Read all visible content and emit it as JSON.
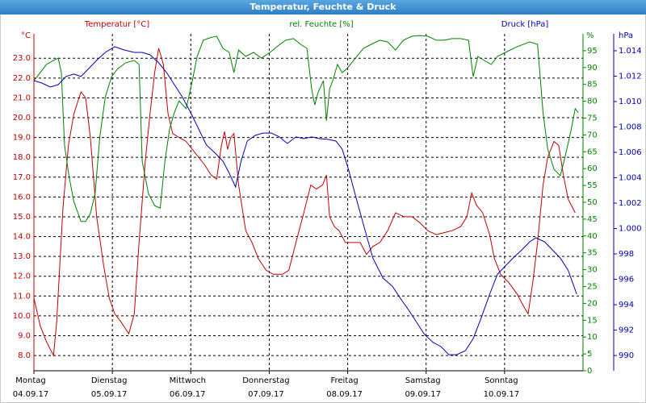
{
  "chart_data": {
    "type": "line",
    "title": "Temperatur, Feuchte & Druck",
    "xlim": [
      0,
      7
    ],
    "xticks": [
      {
        "value": 0,
        "label": "Montag",
        "date": "04.09.17"
      },
      {
        "value": 1,
        "label": "Dienstag",
        "date": "05.09.17"
      },
      {
        "value": 2,
        "label": "Mittwoch",
        "date": "06.09.17"
      },
      {
        "value": 3,
        "label": "Donnerstag",
        "date": "07.09.17"
      },
      {
        "value": 4,
        "label": "Freitag",
        "date": "08.09.17"
      },
      {
        "value": 5,
        "label": "Samstag",
        "date": "09.09.17"
      },
      {
        "value": 6,
        "label": "Sonntag",
        "date": "10.09.17"
      }
    ],
    "y_unit": "°C",
    "ylim": [
      7.23,
      24.23
    ],
    "yticks": [
      {
        "value": 8,
        "label": "8.0"
      },
      {
        "value": 9,
        "label": "9.0"
      },
      {
        "value": 10,
        "label": "10.0"
      },
      {
        "value": 11,
        "label": "11.0"
      },
      {
        "value": 12,
        "label": "12.0"
      },
      {
        "value": 13,
        "label": "13.0"
      },
      {
        "value": 14,
        "label": "14.0"
      },
      {
        "value": 15,
        "label": "15.0"
      },
      {
        "value": 16,
        "label": "16.0"
      },
      {
        "value": 17,
        "label": "17.0"
      },
      {
        "value": 18,
        "label": "18.0"
      },
      {
        "value": 19,
        "label": "19.0"
      },
      {
        "value": 20,
        "label": "20.0"
      },
      {
        "value": 21,
        "label": "21.0"
      },
      {
        "value": 22,
        "label": "22.0"
      },
      {
        "value": 23,
        "label": "23.0"
      }
    ],
    "y2_unit": "%",
    "y2lim": [
      0,
      100
    ],
    "y2ticks": [
      0,
      5,
      10,
      15,
      20,
      25,
      30,
      35,
      40,
      45,
      50,
      55,
      60,
      65,
      70,
      75,
      80,
      85,
      90,
      95
    ],
    "y3_unit": "hPa",
    "y3lim": [
      988.8,
      1015.33
    ],
    "y3ticks": [
      990,
      992,
      994,
      996,
      998,
      {
        "value": 1000,
        "label": "1.000"
      },
      {
        "value": 1002,
        "label": "1.002"
      },
      {
        "value": 1004,
        "label": "1.004"
      },
      {
        "value": 1006,
        "label": "1.006"
      },
      {
        "value": 1008,
        "label": "1.008"
      },
      {
        "value": 1010,
        "label": "1.010"
      },
      {
        "value": 1012,
        "label": "1.012"
      },
      {
        "value": 1014,
        "label": "1.014"
      }
    ],
    "grid": true,
    "series": [
      {
        "name": "Temperatur [°C]",
        "color": "#c00000",
        "axis": "y",
        "x": [
          0,
          0.08,
          0.16,
          0.25,
          0.29,
          0.37,
          0.44,
          0.51,
          0.6,
          0.66,
          0.72,
          0.8,
          0.89,
          0.96,
          1.03,
          1.11,
          1.21,
          1.28,
          1.34,
          1.42,
          1.48,
          1.54,
          1.59,
          1.65,
          1.71,
          1.77,
          1.85,
          1.94,
          2.02,
          2.1,
          2.18,
          2.26,
          2.33,
          2.39,
          2.43,
          2.47,
          2.51,
          2.55,
          2.61,
          2.7,
          2.78,
          2.86,
          2.96,
          3.05,
          3.17,
          3.25,
          3.34,
          3.44,
          3.53,
          3.6,
          3.68,
          3.73,
          3.77,
          3.83,
          3.89,
          3.97,
          4.06,
          4.16,
          4.24,
          4.32,
          4.41,
          4.51,
          4.61,
          4.72,
          4.82,
          4.92,
          5.02,
          5.13,
          5.23,
          5.33,
          5.44,
          5.52,
          5.58,
          5.64,
          5.72,
          5.81,
          5.87,
          5.95,
          6.05,
          6.16,
          6.24,
          6.3,
          6.36,
          6.42,
          6.49,
          6.55,
          6.63,
          6.69,
          6.75,
          6.81,
          6.9
        ],
        "values": [
          10.9,
          9.5,
          8.7,
          8.0,
          9.7,
          15.4,
          18.6,
          20.2,
          21.3,
          21.0,
          19.0,
          15.0,
          12.5,
          10.9,
          10.1,
          9.7,
          9.1,
          10.1,
          13.7,
          17.8,
          20.2,
          22.3,
          23.5,
          22.7,
          20.2,
          19.2,
          19.0,
          18.8,
          18.4,
          18.0,
          17.6,
          17.1,
          16.9,
          18.6,
          19.3,
          18.4,
          19.0,
          19.2,
          16.6,
          14.3,
          13.7,
          12.9,
          12.3,
          12.1,
          12.1,
          12.3,
          13.7,
          15.2,
          16.6,
          16.4,
          16.6,
          17.1,
          15.0,
          14.5,
          14.3,
          13.7,
          13.7,
          13.7,
          13.1,
          13.5,
          13.7,
          14.3,
          15.2,
          15.0,
          15.0,
          14.7,
          14.3,
          14.1,
          14.2,
          14.3,
          14.5,
          15.0,
          16.2,
          15.6,
          15.2,
          14.1,
          12.9,
          12.1,
          11.7,
          11.1,
          10.5,
          10.1,
          11.7,
          13.7,
          16.6,
          18.0,
          18.8,
          18.6,
          17.1,
          15.9,
          15.2
        ]
      },
      {
        "name": "rel. Feuchte [%]",
        "color": "#008000",
        "axis": "y2",
        "x": [
          0,
          0.08,
          0.16,
          0.25,
          0.31,
          0.35,
          0.39,
          0.45,
          0.51,
          0.6,
          0.66,
          0.72,
          0.78,
          0.84,
          0.91,
          0.99,
          1.07,
          1.17,
          1.28,
          1.34,
          1.38,
          1.46,
          1.54,
          1.61,
          1.67,
          1.73,
          1.79,
          1.85,
          1.94,
          2.02,
          2.08,
          2.16,
          2.24,
          2.33,
          2.41,
          2.49,
          2.55,
          2.61,
          2.7,
          2.8,
          2.9,
          3.01,
          3.11,
          3.21,
          3.31,
          3.4,
          3.48,
          3.54,
          3.58,
          3.62,
          3.69,
          3.73,
          3.77,
          3.81,
          3.87,
          3.93,
          3.99,
          4.1,
          4.2,
          4.3,
          4.41,
          4.51,
          4.61,
          4.71,
          4.82,
          4.92,
          5.02,
          5.13,
          5.23,
          5.33,
          5.44,
          5.54,
          5.6,
          5.66,
          5.74,
          5.83,
          5.91,
          6.01,
          6.16,
          6.32,
          6.42,
          6.49,
          6.55,
          6.63,
          6.71,
          6.77,
          6.84,
          6.9,
          6.94
        ],
        "values": [
          86.1,
          88.5,
          90.9,
          92.1,
          92.8,
          88.5,
          67.0,
          57.4,
          50.2,
          44.3,
          44.3,
          46.7,
          52.6,
          69.4,
          81.3,
          87.3,
          89.7,
          91.4,
          92.1,
          90.9,
          62.2,
          52.6,
          49.0,
          48.3,
          62.2,
          71.8,
          76.6,
          80.1,
          77.8,
          86.1,
          93.3,
          98.1,
          98.8,
          99.3,
          95.7,
          94.5,
          88.5,
          95.2,
          93.3,
          94.5,
          92.8,
          94.5,
          96.4,
          98.1,
          98.6,
          96.9,
          95.7,
          83.7,
          78.9,
          82.5,
          86.1,
          74.2,
          83.7,
          86.1,
          90.9,
          88.5,
          89.7,
          92.8,
          95.7,
          96.9,
          98.1,
          97.6,
          95.2,
          98.1,
          99.3,
          99.5,
          99.3,
          98.1,
          98.1,
          98.6,
          98.6,
          98.1,
          87.3,
          93.3,
          92.1,
          90.9,
          93.3,
          94.5,
          96.2,
          97.6,
          96.9,
          76.6,
          65.8,
          59.8,
          57.9,
          63.4,
          70.6,
          77.8,
          76.6
        ]
      },
      {
        "name": "Druck [hPa]",
        "color": "#0000b0",
        "axis": "y3",
        "x": [
          0,
          0.1,
          0.21,
          0.31,
          0.41,
          0.51,
          0.6,
          0.7,
          0.8,
          0.91,
          1.03,
          1.15,
          1.28,
          1.38,
          1.48,
          1.59,
          1.69,
          1.79,
          1.89,
          2.0,
          2.1,
          2.2,
          2.31,
          2.41,
          2.49,
          2.57,
          2.64,
          2.72,
          2.82,
          2.92,
          3.03,
          3.13,
          3.23,
          3.34,
          3.44,
          3.54,
          3.64,
          3.75,
          3.85,
          3.93,
          4.01,
          4.12,
          4.22,
          4.32,
          4.45,
          4.57,
          4.67,
          4.78,
          4.88,
          4.98,
          5.09,
          5.19,
          5.29,
          5.39,
          5.5,
          5.6,
          5.7,
          5.81,
          5.91,
          6.01,
          6.11,
          6.22,
          6.32,
          6.4,
          6.51,
          6.61,
          6.71,
          6.81,
          6.92
        ],
        "values": [
          1011.65,
          1011.46,
          1011.14,
          1011.33,
          1011.97,
          1012.16,
          1011.97,
          1012.6,
          1013.24,
          1013.87,
          1014.32,
          1014.06,
          1013.87,
          1013.87,
          1013.68,
          1013.05,
          1012.29,
          1011.33,
          1010.38,
          1009.11,
          1007.84,
          1006.57,
          1005.94,
          1005.3,
          1004.35,
          1003.27,
          1005.3,
          1006.89,
          1007.33,
          1007.52,
          1007.52,
          1007.21,
          1006.7,
          1007.21,
          1007.08,
          1007.21,
          1007.08,
          1007.02,
          1006.89,
          1006.25,
          1004.67,
          1002.13,
          999.9,
          997.68,
          996.1,
          995.46,
          994.51,
          993.56,
          992.6,
          991.65,
          991.02,
          990.7,
          990.06,
          990.06,
          990.38,
          991.33,
          992.92,
          994.83,
          996.41,
          997.05,
          997.68,
          998.32,
          998.95,
          999.27,
          998.95,
          998.32,
          997.68,
          996.73,
          994.83
        ]
      }
    ]
  }
}
